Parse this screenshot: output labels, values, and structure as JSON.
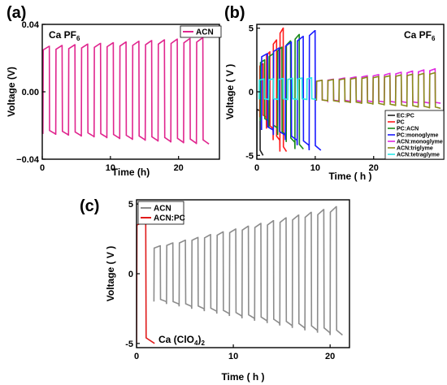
{
  "chart_data": [
    {
      "type": "line",
      "panel_label": "(a)",
      "annotation": {
        "text": "Ca PF",
        "sub": "6"
      },
      "xlabel": "Time (h)",
      "ylabel": "Voltage (V)",
      "xlim": [
        0,
        26
      ],
      "ylim": [
        -0.04,
        0.04
      ],
      "xticks": [
        0,
        10,
        20
      ],
      "yticks": [
        -0.04,
        0.0,
        0.04
      ],
      "ytick_labels": [
        "−0.04",
        "0.00",
        "0.04"
      ],
      "legend": "top-right",
      "series": [
        {
          "name": "ACN",
          "color": "#e0258e",
          "cycles": 13,
          "period": 1.85,
          "t_start": 0.1,
          "t_end": 24.5,
          "v_high_start": 0.027,
          "v_high_end": 0.032,
          "v_low_start": -0.025,
          "v_low_end": -0.031
        }
      ]
    },
    {
      "type": "line",
      "panel_label": "(b)",
      "annotation": {
        "text": "Ca PF",
        "sub": "6"
      },
      "xlabel": "Time ( h )",
      "ylabel": "Voltage ( V )",
      "xlim": [
        0,
        32
      ],
      "ylim": [
        -5.3,
        5.3
      ],
      "xticks": [
        0,
        10,
        20
      ],
      "yticks": [
        -5,
        0,
        5
      ],
      "legend": "bottom-right",
      "series": [
        {
          "name": "EC:PC",
          "color": "#222222",
          "cycles": 1,
          "period": 1.0,
          "t_start": 0.0,
          "t_end": 1.1,
          "v_high_start": -1.5,
          "v_high_end": -1.5,
          "v_low_start": -3.0,
          "v_low_end": -5.0
        },
        {
          "name": "PC",
          "color": "#ff1a1a",
          "cycles": 4,
          "period": 1.3,
          "t_start": 0.5,
          "t_end": 5.1,
          "v_high_start": 2.2,
          "v_high_end": 5.0,
          "v_low_start": -2.0,
          "v_low_end": -4.7
        },
        {
          "name": "PC:ACN",
          "color": "#1a8a1a",
          "cycles": 5,
          "period": 1.6,
          "t_start": 0.6,
          "t_end": 8.0,
          "v_high_start": 2.5,
          "v_high_end": 4.5,
          "v_low_start": -2.3,
          "v_low_end": -4.5
        },
        {
          "name": "PC:monoglyme",
          "color": "#1a1aff",
          "cycles": 5,
          "period": 2.0,
          "t_start": 0.8,
          "t_end": 11.0,
          "v_high_start": 3.0,
          "v_high_end": 4.8,
          "v_low_start": -3.0,
          "v_low_end": -4.6
        },
        {
          "name": "ACN:monoglyme",
          "color": "#e028e0",
          "cycles": 11,
          "period": 2.0,
          "t_start": 10.2,
          "t_end": 31.5,
          "v_high_start": 0.9,
          "v_high_end": 1.8,
          "v_low_start": -0.7,
          "v_low_end": -0.9
        },
        {
          "name": "ACN:triglyme",
          "color": "#8a8a1a",
          "cycles": 11,
          "period": 2.0,
          "t_start": 10.2,
          "t_end": 31.5,
          "v_high_start": 0.9,
          "v_high_end": 1.5,
          "v_low_start": -0.7,
          "v_low_end": -1.3
        },
        {
          "name": "ACN:tetraglyme",
          "color": "#2ae8e8",
          "cycles": 6,
          "period": 1.6,
          "t_start": 0.4,
          "t_end": 10.2,
          "v_high_start": 1.0,
          "v_high_end": 1.1,
          "v_low_start": -0.6,
          "v_low_end": -0.6
        }
      ]
    },
    {
      "type": "line",
      "panel_label": "(c)",
      "annotation": {
        "text": "Ca (ClO",
        "sub": "4",
        "tail": ")",
        "sub2": "2"
      },
      "xlabel": "Time ( h )",
      "ylabel": "Voltage ( V )",
      "xlim": [
        0,
        22
      ],
      "ylim": [
        -5.3,
        5.3
      ],
      "xticks": [
        0,
        10,
        20
      ],
      "yticks": [
        -5,
        0,
        5
      ],
      "legend": "top-left",
      "series": [
        {
          "name": "ACN",
          "color": "#8c8c8c",
          "cycles": 15,
          "period": 1.3,
          "t_start": 1.8,
          "t_end": 21.3,
          "v_high_start": 2.0,
          "v_high_end": 4.8,
          "v_low_start": -2.0,
          "v_low_end": -4.4
        },
        {
          "name": "ACN:PC",
          "color": "#e01a1a",
          "cycles": 1,
          "period": 1.0,
          "t_start": 0.0,
          "t_end": 1.9,
          "v_high_start": 3.0,
          "v_high_end": 3.8,
          "v_low_start": -3.5,
          "v_low_end": -5.0
        }
      ]
    }
  ]
}
